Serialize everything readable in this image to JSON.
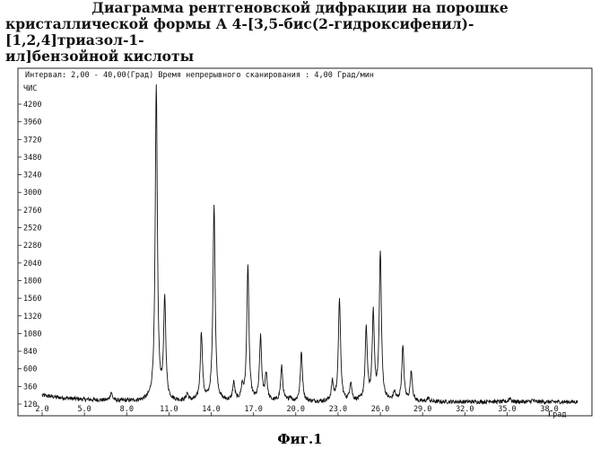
{
  "figure_title": {
    "line1": "Диаграмма рентгеновской дифракции на порошке",
    "line2": "кристаллической формы А 4-[3,5-бис(2-гидроксифенил)-[1,2,4]триазол-1-",
    "line3": "ил]бензойной кислоты"
  },
  "caption": "Фиг.1",
  "chart_data": {
    "type": "line",
    "header": "Интервал: 2,00 - 40,00(Град) Время непрерывного сканирования : 4,00 Град/мин",
    "ylabel": "ЧИС",
    "xlabel": "Град",
    "xlim": [
      2.0,
      40.0
    ],
    "ylim": [
      0,
      4500
    ],
    "x_ticks": [
      "2.0",
      "5.0",
      "8.0",
      "11.0",
      "14.0",
      "17.0",
      "20.0",
      "23.0",
      "26.0",
      "29.0",
      "32.0",
      "35.0",
      "38.0"
    ],
    "y_ticks": [
      "4200",
      "3960",
      "3720",
      "3480",
      "3240",
      "3000",
      "2760",
      "2520",
      "2280",
      "2040",
      "1800",
      "1560",
      "1320",
      "1080",
      "840",
      "600",
      "360",
      "120"
    ],
    "baseline_counts": 150,
    "peaks": [
      {
        "x": 6.9,
        "y": 260
      },
      {
        "x": 10.1,
        "y": 4450
      },
      {
        "x": 10.7,
        "y": 1520
      },
      {
        "x": 12.3,
        "y": 250
      },
      {
        "x": 13.3,
        "y": 1080
      },
      {
        "x": 14.2,
        "y": 2840
      },
      {
        "x": 15.6,
        "y": 390
      },
      {
        "x": 16.2,
        "y": 330
      },
      {
        "x": 16.6,
        "y": 1990
      },
      {
        "x": 17.5,
        "y": 1010
      },
      {
        "x": 17.9,
        "y": 520
      },
      {
        "x": 19.0,
        "y": 620
      },
      {
        "x": 19.6,
        "y": 210
      },
      {
        "x": 20.4,
        "y": 820
      },
      {
        "x": 22.6,
        "y": 400
      },
      {
        "x": 23.1,
        "y": 1560
      },
      {
        "x": 23.9,
        "y": 400
      },
      {
        "x": 25.0,
        "y": 1120
      },
      {
        "x": 25.5,
        "y": 1320
      },
      {
        "x": 26.0,
        "y": 2180
      },
      {
        "x": 27.0,
        "y": 270
      },
      {
        "x": 27.6,
        "y": 890
      },
      {
        "x": 28.2,
        "y": 550
      },
      {
        "x": 29.4,
        "y": 200
      },
      {
        "x": 33.8,
        "y": 170
      },
      {
        "x": 35.2,
        "y": 210
      },
      {
        "x": 36.8,
        "y": 175
      }
    ]
  }
}
